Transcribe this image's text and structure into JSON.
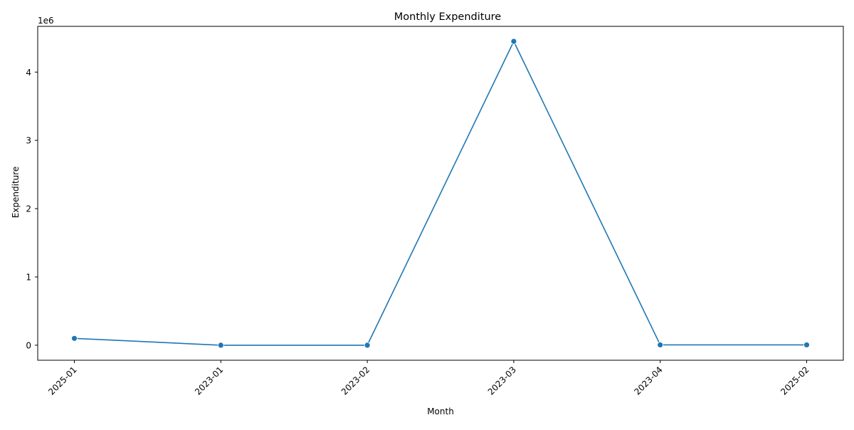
{
  "chart_data": {
    "type": "line",
    "title": "Monthly Expenditure",
    "xlabel": "Month",
    "ylabel": "Expenditure",
    "y_offset_label": "1e6",
    "y_scale_factor": 1000000,
    "categories": [
      "2025-01",
      "2023-01",
      "2023-02",
      "2023-03",
      "2023-04",
      "2025-02"
    ],
    "series": [
      {
        "values": [
          100000,
          0,
          0,
          4450000,
          5000,
          5000
        ],
        "color": "#1f77b4",
        "marker": "circle"
      }
    ],
    "ylim": [
      -220000,
      4670000
    ],
    "yticks": [
      0,
      1000000,
      2000000,
      3000000,
      4000000
    ],
    "ytick_labels": [
      "0",
      "1",
      "2",
      "3",
      "4"
    ],
    "xtick_rotation_deg": 45,
    "grid": false,
    "legend": "none"
  }
}
